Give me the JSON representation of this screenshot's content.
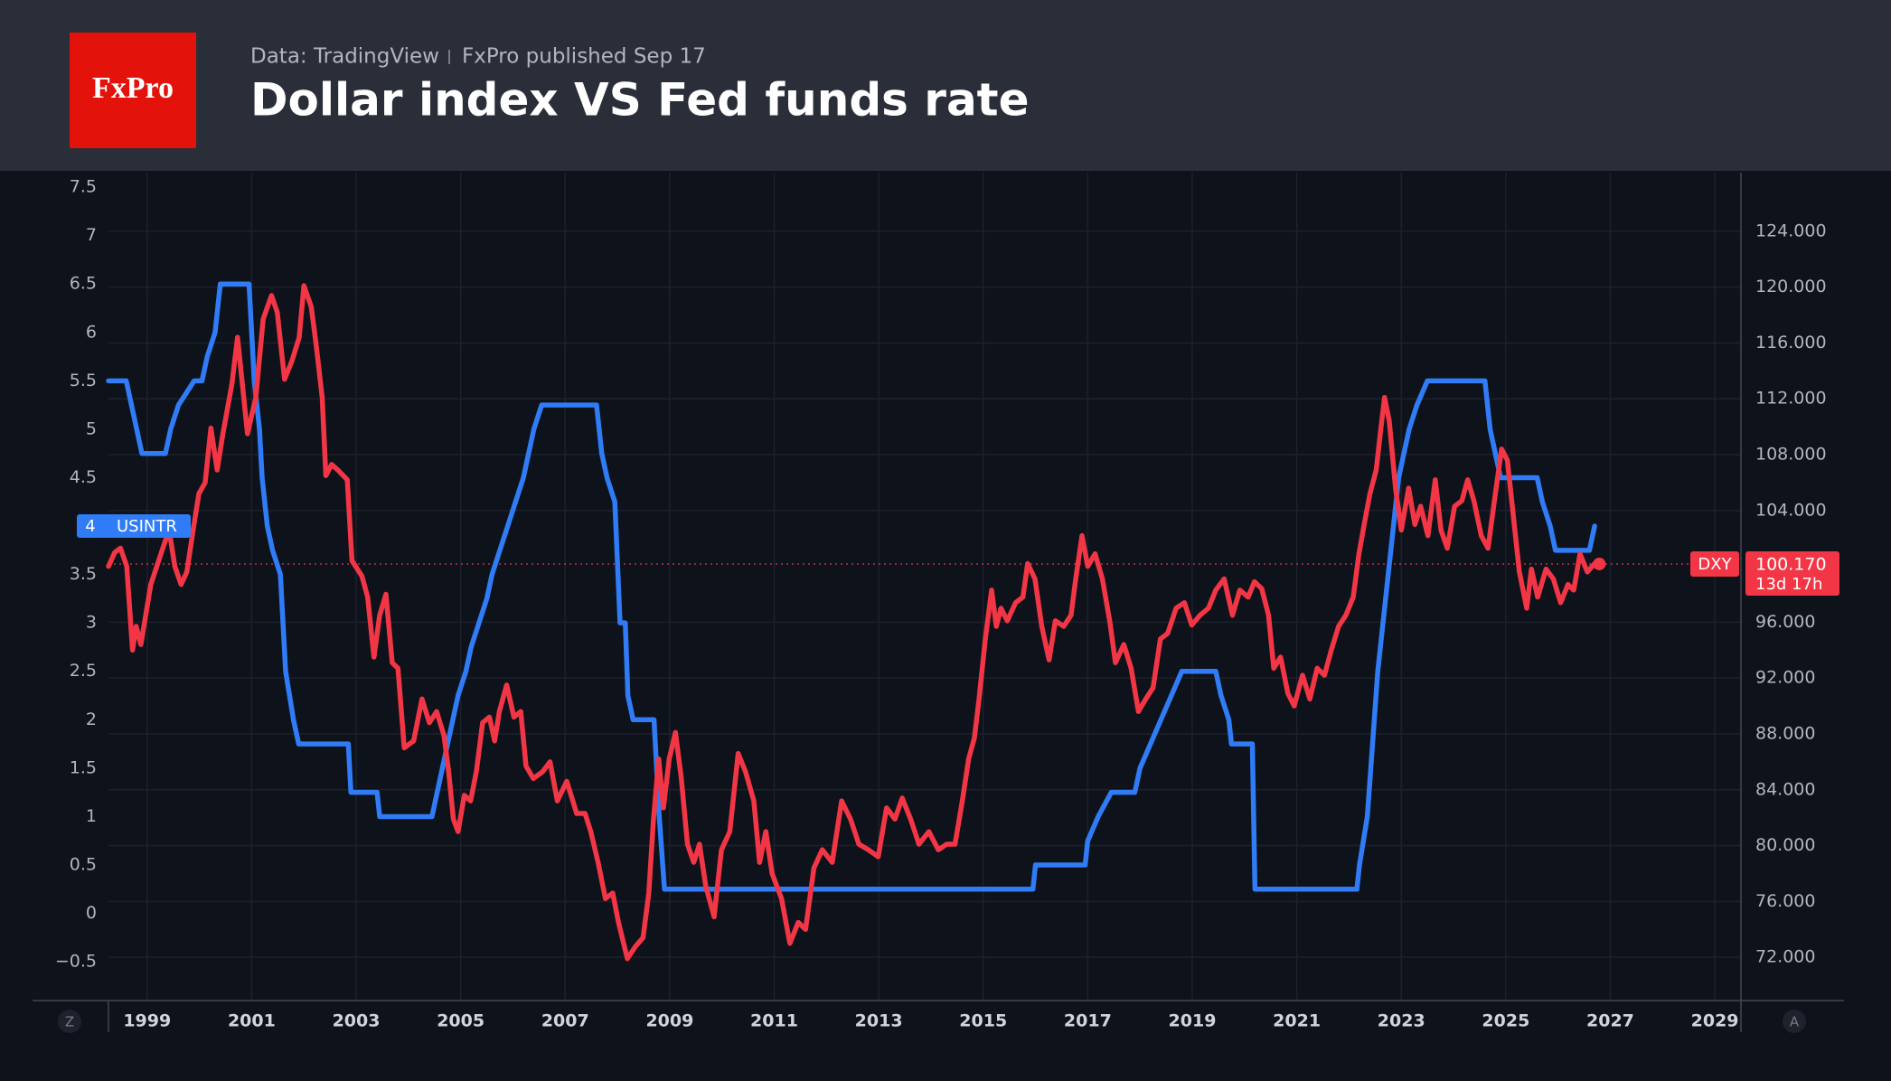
{
  "chart_data": {
    "type": "line",
    "logo": "FxPro",
    "subtitle": "Data: TradingView",
    "publisher": "FxPro published Sep 17",
    "title": "Dollar index VS Fed funds rate",
    "xlim": [
      1998.26,
      2029.5
    ],
    "xticks": [
      1999,
      2001,
      2003,
      2005,
      2007,
      2009,
      2011,
      2013,
      2015,
      2017,
      2019,
      2021,
      2023,
      2025,
      2027,
      2029
    ],
    "ylim": [
      -0.9,
      7.65
    ],
    "yticks": [
      {
        "value": -0.5,
        "label": "−0.5"
      },
      0,
      0.5,
      1,
      1.5,
      2,
      2.5,
      3,
      3.5,
      4.5,
      5,
      5.5,
      6,
      6.5,
      7,
      7.5
    ],
    "y2lim": [
      68.9,
      128.2
    ],
    "y2ticks": [
      {
        "value": 72,
        "label": "72.000"
      },
      {
        "value": 76,
        "label": "76.000"
      },
      {
        "value": 80,
        "label": "80.000"
      },
      {
        "value": 84,
        "label": "84.000"
      },
      {
        "value": 88,
        "label": "88.000"
      },
      {
        "value": 92,
        "label": "92.000"
      },
      {
        "value": 96,
        "label": "96.000"
      },
      {
        "value": 104,
        "label": "104.000"
      },
      {
        "value": 108,
        "label": "108.000"
      },
      {
        "value": 112,
        "label": "112.000"
      },
      {
        "value": 116,
        "label": "116.000"
      },
      {
        "value": 120,
        "label": "120.000"
      },
      {
        "value": 124,
        "label": "124.000"
      }
    ],
    "grid": true,
    "corner_labels": [
      "Z",
      "A"
    ],
    "price_line": {
      "value": 100.17,
      "label": "100.170",
      "countdown": "13d 17h"
    },
    "series": [
      {
        "name": "USINTR",
        "color": "#2f7cf6",
        "x": [
          1998.26,
          1998.6,
          1998.9,
          1999.35,
          1999.45,
          1999.6,
          1999.9,
          2000.05,
          2000.15,
          2000.3,
          2000.4,
          2000.95,
          2001.0,
          2001.05,
          2001.15,
          2001.2,
          2001.3,
          2001.4,
          2001.55,
          2001.65,
          2001.8,
          2001.9,
          2002.85,
          2002.9,
          2003.4,
          2003.45,
          2004.45,
          2004.55,
          2004.65,
          2004.75,
          2004.85,
          2004.95,
          2005.1,
          2005.2,
          2005.35,
          2005.5,
          2005.6,
          2005.75,
          2005.9,
          2006.05,
          2006.2,
          2006.3,
          2006.4,
          2006.55,
          2007.6,
          2007.7,
          2007.8,
          2007.95,
          2008.05,
          2008.15,
          2008.2,
          2008.3,
          2008.7,
          2008.8,
          2008.9,
          2015.95,
          2016.0,
          2016.95,
          2017.0,
          2017.2,
          2017.45,
          2017.9,
          2018.0,
          2018.2,
          2018.4,
          2018.6,
          2018.8,
          2019.45,
          2019.55,
          2019.7,
          2019.75,
          2020.15,
          2020.2,
          2022.15,
          2022.2,
          2022.35,
          2022.45,
          2022.55,
          2022.7,
          2022.85,
          2022.95,
          2023.05,
          2023.15,
          2023.3,
          2023.5,
          2024.6,
          2024.7,
          2024.8,
          2024.9,
          2025.6,
          2025.7,
          2025.85,
          2025.95,
          2026.6,
          2026.7
        ],
        "values": [
          5.5,
          5.5,
          4.75,
          4.75,
          5.0,
          5.25,
          5.5,
          5.5,
          5.75,
          6.0,
          6.5,
          6.5,
          6.0,
          5.5,
          5.0,
          4.5,
          4.0,
          3.75,
          3.5,
          2.5,
          2.0,
          1.75,
          1.75,
          1.25,
          1.25,
          1.0,
          1.0,
          1.25,
          1.5,
          1.75,
          2.0,
          2.25,
          2.5,
          2.75,
          3.0,
          3.25,
          3.5,
          3.75,
          4.0,
          4.25,
          4.5,
          4.75,
          5.0,
          5.25,
          5.25,
          4.75,
          4.5,
          4.25,
          3.0,
          3.0,
          2.25,
          2.0,
          2.0,
          1.0,
          0.25,
          0.25,
          0.5,
          0.5,
          0.75,
          1.0,
          1.25,
          1.25,
          1.5,
          1.75,
          2.0,
          2.25,
          2.5,
          2.5,
          2.25,
          2.0,
          1.75,
          1.75,
          0.25,
          0.25,
          0.5,
          1.0,
          1.75,
          2.5,
          3.25,
          4.0,
          4.5,
          4.75,
          5.0,
          5.25,
          5.5,
          5.5,
          5.0,
          4.75,
          4.5,
          4.5,
          4.25,
          4.0,
          3.75,
          3.75,
          4.0
        ]
      },
      {
        "name": "DXY",
        "color": "#f23645",
        "axis": "y2",
        "x": [
          1998.26,
          1998.38,
          1998.49,
          1998.61,
          1998.72,
          1998.79,
          1998.88,
          1999.07,
          1999.3,
          1999.42,
          1999.53,
          1999.65,
          1999.76,
          1999.88,
          1999.99,
          2000.11,
          2000.22,
          2000.34,
          2000.45,
          2000.62,
          2000.73,
          2000.92,
          2001.08,
          2001.22,
          2001.38,
          2001.49,
          2001.63,
          2001.77,
          2001.91,
          2002.0,
          2002.14,
          2002.23,
          2002.35,
          2002.42,
          2002.53,
          2002.65,
          2002.83,
          2002.92,
          2003.11,
          2003.22,
          2003.34,
          2003.45,
          2003.57,
          2003.69,
          2003.8,
          2003.92,
          2004.1,
          2004.26,
          2004.4,
          2004.54,
          2004.68,
          2004.77,
          2004.86,
          2004.95,
          2005.07,
          2005.19,
          2005.3,
          2005.42,
          2005.55,
          2005.65,
          2005.74,
          2005.88,
          2006.02,
          2006.15,
          2006.25,
          2006.39,
          2006.57,
          2006.71,
          2006.85,
          2007.03,
          2007.22,
          2007.38,
          2007.49,
          2007.63,
          2007.77,
          2007.91,
          2008.02,
          2008.19,
          2008.35,
          2008.49,
          2008.6,
          2008.69,
          2008.79,
          2008.88,
          2008.99,
          2009.11,
          2009.22,
          2009.34,
          2009.46,
          2009.57,
          2009.69,
          2009.85,
          2009.99,
          2010.15,
          2010.31,
          2010.45,
          2010.61,
          2010.72,
          2010.84,
          2010.96,
          2011.14,
          2011.3,
          2011.46,
          2011.6,
          2011.76,
          2011.92,
          2012.11,
          2012.29,
          2012.46,
          2012.62,
          2012.8,
          2012.99,
          2013.15,
          2013.31,
          2013.45,
          2013.61,
          2013.77,
          2013.96,
          2014.14,
          2014.3,
          2014.46,
          2014.6,
          2014.72,
          2014.83,
          2014.92,
          2015.04,
          2015.16,
          2015.25,
          2015.34,
          2015.46,
          2015.62,
          2015.76,
          2015.85,
          2015.99,
          2016.12,
          2016.26,
          2016.38,
          2016.54,
          2016.68,
          2016.77,
          2016.89,
          2017.0,
          2017.14,
          2017.28,
          2017.42,
          2017.53,
          2017.69,
          2017.83,
          2017.97,
          2018.11,
          2018.25,
          2018.39,
          2018.53,
          2018.69,
          2018.85,
          2018.99,
          2019.15,
          2019.31,
          2019.45,
          2019.61,
          2019.77,
          2019.91,
          2020.07,
          2020.19,
          2020.33,
          2020.46,
          2020.56,
          2020.69,
          2020.83,
          2020.95,
          2021.11,
          2021.25,
          2021.39,
          2021.53,
          2021.66,
          2021.8,
          2021.94,
          2022.08,
          2022.19,
          2022.29,
          2022.4,
          2022.52,
          2022.61,
          2022.68,
          2022.77,
          2022.89,
          2023.0,
          2023.14,
          2023.26,
          2023.37,
          2023.51,
          2023.65,
          2023.76,
          2023.88,
          2024.02,
          2024.16,
          2024.27,
          2024.39,
          2024.53,
          2024.66,
          2024.8,
          2024.92,
          2025.03,
          2025.15,
          2025.26,
          2025.4,
          2025.49,
          2025.61,
          2025.77,
          2025.91,
          2026.05,
          2026.19,
          2026.3,
          2026.42,
          2026.56,
          2026.7,
          2026.79
        ],
        "values": [
          100.0,
          101.0,
          101.3,
          100.0,
          94.0,
          95.7,
          94.4,
          98.7,
          101.3,
          102.6,
          100.0,
          98.7,
          99.6,
          102.6,
          105.2,
          106.0,
          109.9,
          106.9,
          109.5,
          113.0,
          116.4,
          109.5,
          112.1,
          117.7,
          119.4,
          118.2,
          113.4,
          114.7,
          116.4,
          120.1,
          118.6,
          116.0,
          112.1,
          106.5,
          107.3,
          106.9,
          106.2,
          100.4,
          99.3,
          97.8,
          93.5,
          96.5,
          98.0,
          93.1,
          92.7,
          87.0,
          87.5,
          90.5,
          88.8,
          89.6,
          87.9,
          85.3,
          81.9,
          81.0,
          83.6,
          83.2,
          85.3,
          88.8,
          89.2,
          87.5,
          89.6,
          91.5,
          89.2,
          89.6,
          85.7,
          84.8,
          85.3,
          86.0,
          83.2,
          84.6,
          82.3,
          82.3,
          81.0,
          78.8,
          76.2,
          76.6,
          74.5,
          71.9,
          72.8,
          73.4,
          76.6,
          81.9,
          86.2,
          82.7,
          86.2,
          88.1,
          84.9,
          80.1,
          78.8,
          80.1,
          77.1,
          74.9,
          79.7,
          81.0,
          86.6,
          85.3,
          83.2,
          78.8,
          81.0,
          78.0,
          76.2,
          73.0,
          74.5,
          74.0,
          78.4,
          79.7,
          78.8,
          83.2,
          81.9,
          80.1,
          79.7,
          79.2,
          82.7,
          81.9,
          83.4,
          81.9,
          80.1,
          81.0,
          79.7,
          80.1,
          80.1,
          83.2,
          86.2,
          87.7,
          90.5,
          94.8,
          98.3,
          95.7,
          97.0,
          96.1,
          97.4,
          97.8,
          100.2,
          99.1,
          95.7,
          93.3,
          96.1,
          95.7,
          96.5,
          99.1,
          102.2,
          100.0,
          100.9,
          99.1,
          96.1,
          93.1,
          94.4,
          92.7,
          89.6,
          90.5,
          91.3,
          94.8,
          95.2,
          97.0,
          97.4,
          95.8,
          96.5,
          97.0,
          98.3,
          99.1,
          96.5,
          98.3,
          97.8,
          98.9,
          98.4,
          96.5,
          92.7,
          93.5,
          90.9,
          90.0,
          92.2,
          90.5,
          92.7,
          92.2,
          94.0,
          95.7,
          96.5,
          97.8,
          100.9,
          103.0,
          105.2,
          106.9,
          109.9,
          112.1,
          110.4,
          105.6,
          102.6,
          105.6,
          103.0,
          104.3,
          102.2,
          106.2,
          102.6,
          101.3,
          104.3,
          104.7,
          106.2,
          104.7,
          102.2,
          101.3,
          105.2,
          108.4,
          107.6,
          103.4,
          99.6,
          97.0,
          99.8,
          97.8,
          99.8,
          99.1,
          97.4,
          98.7,
          98.3,
          100.9,
          99.6,
          100.2,
          100.17
        ]
      }
    ]
  }
}
